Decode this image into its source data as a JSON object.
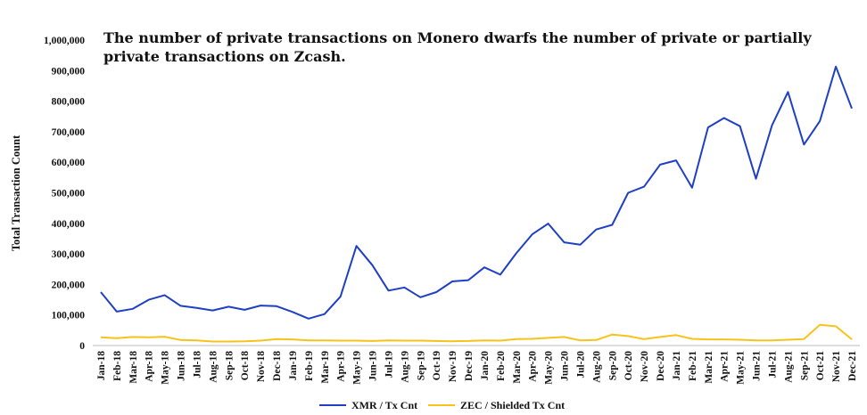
{
  "chart_data": {
    "type": "line",
    "title_lines": [
      "The number of private transactions on Monero dwarfs the number of private or partially",
      "private transactions on Zcash."
    ],
    "ylabel": "Total Transaction Count",
    "xlabel": "",
    "ylim": [
      0,
      1000000
    ],
    "y_ticks": [
      0,
      100000,
      200000,
      300000,
      400000,
      500000,
      600000,
      700000,
      800000,
      900000,
      1000000
    ],
    "y_tick_labels": [
      "0",
      "100,000",
      "200,000",
      "300,000",
      "400,000",
      "500,000",
      "600,000",
      "700,000",
      "800,000",
      "900,000",
      "1,000,000"
    ],
    "grid": false,
    "legend_position": "bottom",
    "categories": [
      "Jan-18",
      "Feb-18",
      "Mar-18",
      "Apr-18",
      "May-18",
      "Jun-18",
      "Jul-18",
      "Aug-18",
      "Sep-18",
      "Oct-18",
      "Nov-18",
      "Dec-18",
      "Jan-19",
      "Feb-19",
      "Mar-19",
      "Apr-19",
      "May-19",
      "Jun-19",
      "Jul-19",
      "Aug-19",
      "Sep-19",
      "Oct-19",
      "Nov-19",
      "Dec-19",
      "Jan-20",
      "Feb-20",
      "Mar-20",
      "Apr-20",
      "May-20",
      "Jun-20",
      "Jul-20",
      "Aug-20",
      "Sep-20",
      "Oct-20",
      "Nov-20",
      "Dec-20",
      "Jan-21",
      "Feb-21",
      "Mar-21",
      "Apr-21",
      "May-21",
      "Jun-21",
      "Jul-21",
      "Aug-21",
      "Sep-21",
      "Oct-21",
      "Nov-21",
      "Dec-21"
    ],
    "series": [
      {
        "name": "XMR / Tx Cnt",
        "color": "#1f3fc4",
        "values": [
          175000,
          111000,
          120000,
          150000,
          165000,
          130000,
          123000,
          115000,
          127000,
          117000,
          131000,
          129000,
          110000,
          88000,
          103000,
          160000,
          326000,
          263000,
          180000,
          190000,
          158000,
          175000,
          210000,
          214000,
          256000,
          232000,
          302000,
          364000,
          399000,
          338000,
          330000,
          380000,
          395000,
          500000,
          520000,
          592000,
          606000,
          517000,
          714000,
          745000,
          718000,
          546000,
          721000,
          830000,
          658000,
          735000,
          913000,
          776000
        ]
      },
      {
        "name": "ZEC / Shielded Tx Cnt",
        "color": "#f5c31a",
        "values": [
          27000,
          24000,
          28000,
          27000,
          29000,
          18000,
          17000,
          13000,
          13000,
          14000,
          16000,
          21000,
          20000,
          17000,
          17000,
          16000,
          16000,
          15000,
          17000,
          16000,
          16000,
          15000,
          14000,
          15000,
          17000,
          16000,
          21000,
          22000,
          25000,
          28000,
          17000,
          18000,
          36000,
          31000,
          21000,
          28000,
          34000,
          22000,
          20000,
          20000,
          19000,
          17000,
          17000,
          19000,
          21000,
          68000,
          63000,
          20000
        ]
      }
    ]
  }
}
